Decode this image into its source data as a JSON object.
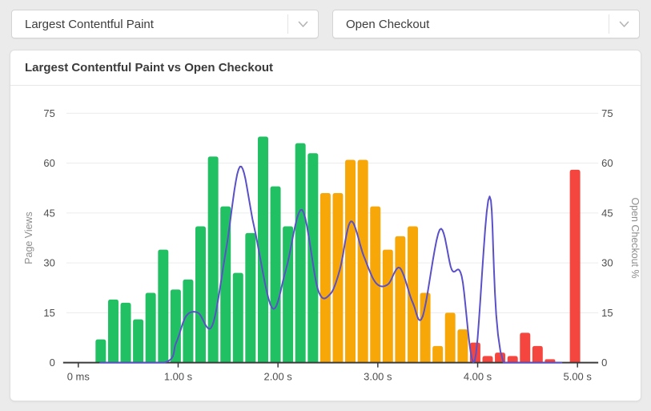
{
  "controls": {
    "metric_select": {
      "value": "Largest Contentful Paint",
      "icon": "chevron-down"
    },
    "event_select": {
      "value": "Open Checkout",
      "icon": "chevron-down"
    }
  },
  "card": {
    "title": "Largest Contentful Paint vs Open Checkout"
  },
  "chart_data": {
    "type": "bar",
    "title": "Largest Contentful Paint vs Open Checkout",
    "grid": true,
    "x_axis": {
      "tick_labels": [
        "0 ms",
        "1.00 s",
        "2.00 s",
        "3.00 s",
        "4.00 s",
        "5.00 s"
      ],
      "tick_seconds": [
        0,
        1,
        2,
        3,
        4,
        5
      ],
      "domain_seconds": [
        0,
        5.18
      ]
    },
    "left_axis": {
      "label": "Page Views",
      "ticks": [
        0,
        15,
        30,
        45,
        60,
        75
      ],
      "range": [
        0,
        75
      ]
    },
    "right_axis": {
      "label": "Open Checkout %",
      "ticks": [
        0,
        15,
        30,
        45,
        60,
        75
      ],
      "range": [
        0,
        75
      ]
    },
    "bars": {
      "series_name": "Page Views",
      "bin_width_seconds": 0.125,
      "first_bin_center_seconds": 0.225,
      "values": [
        7,
        19,
        18,
        13,
        21,
        34,
        22,
        25,
        41,
        62,
        47,
        27,
        39,
        68,
        53,
        41,
        66,
        63,
        51,
        51,
        61,
        61,
        47,
        34,
        38,
        41,
        21,
        5,
        15,
        10,
        6,
        2,
        3,
        2,
        9,
        5,
        1,
        0,
        58
      ],
      "segments": [
        "good",
        "good",
        "good",
        "good",
        "good",
        "good",
        "good",
        "good",
        "good",
        "good",
        "good",
        "good",
        "good",
        "good",
        "good",
        "good",
        "good",
        "good",
        "needs_improvement",
        "needs_improvement",
        "needs_improvement",
        "needs_improvement",
        "needs_improvement",
        "needs_improvement",
        "needs_improvement",
        "needs_improvement",
        "needs_improvement",
        "needs_improvement",
        "needs_improvement",
        "needs_improvement",
        "poor",
        "poor",
        "poor",
        "poor",
        "poor",
        "poor",
        "poor",
        "poor",
        "poor"
      ],
      "segment_colors": {
        "good": "#21c063",
        "needs_improvement": "#f7a708",
        "poor": "#f4463e"
      }
    },
    "line": {
      "series_name": "Open Checkout %",
      "color": "#5a50c8",
      "points": [
        [
          0.22,
          0
        ],
        [
          0.86,
          0
        ],
        [
          0.98,
          6
        ],
        [
          1.08,
          14
        ],
        [
          1.2,
          15
        ],
        [
          1.34,
          11
        ],
        [
          1.48,
          34
        ],
        [
          1.62,
          59
        ],
        [
          1.76,
          41
        ],
        [
          1.94,
          16.5
        ],
        [
          2.08,
          28
        ],
        [
          2.24,
          46
        ],
        [
          2.4,
          22
        ],
        [
          2.52,
          20.5
        ],
        [
          2.62,
          28
        ],
        [
          2.73,
          42.5
        ],
        [
          2.86,
          32
        ],
        [
          2.98,
          24
        ],
        [
          3.1,
          23.5
        ],
        [
          3.22,
          28.5
        ],
        [
          3.35,
          18
        ],
        [
          3.45,
          14
        ],
        [
          3.62,
          40
        ],
        [
          3.74,
          28
        ],
        [
          3.84,
          26
        ],
        [
          3.97,
          0.5
        ],
        [
          4.12,
          50
        ],
        [
          4.26,
          0
        ],
        [
          4.84,
          0
        ]
      ]
    },
    "style": {
      "grid_color": "#ececec",
      "axis_color": "#3a3a3a",
      "tick_text_color": "#4d4d4d",
      "axis_title_color": "#8e8e8e"
    }
  }
}
